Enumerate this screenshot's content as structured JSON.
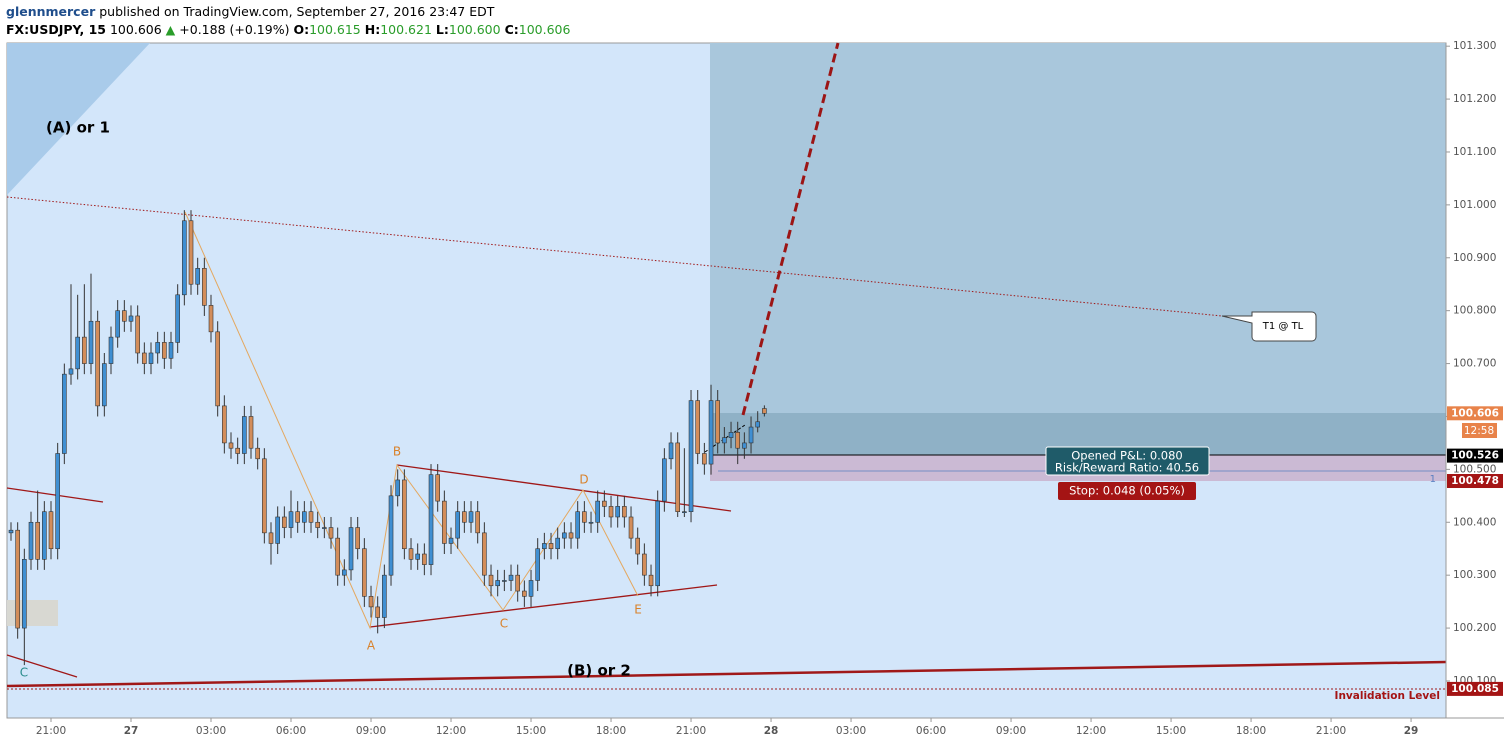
{
  "header": {
    "author": "glennmercer",
    "published": "published on TradingView.com, September 27, 2016 23:47 EDT",
    "symbol": "FX:USDJPY, 15",
    "last": "100.606",
    "change": "+0.188 (+0.19%)",
    "o_label": "O:",
    "o": "100.615",
    "h_label": "H:",
    "h": "100.621",
    "l_label": "L:",
    "l": "100.600",
    "c_label": "C:",
    "c": "100.606"
  },
  "chart_data": {
    "type": "candlestick",
    "x": [
      19.5,
      19.75,
      20,
      20.25,
      20.5,
      20.75,
      21,
      21.25,
      21.5,
      21.75,
      22,
      22.25,
      22.5,
      22.75,
      23,
      23.25,
      23.5,
      23.75,
      24,
      24.25,
      24.5,
      24.75,
      25,
      25.25,
      25.5,
      25.75,
      26,
      26.25,
      26.5,
      26.75,
      27,
      27.25,
      27.5,
      27.75,
      28,
      28.25,
      28.5,
      28.75,
      29,
      29.25,
      29.5,
      29.75,
      30,
      30.25,
      30.5,
      30.75,
      31,
      31.25,
      31.5,
      31.75,
      32,
      32.25,
      32.5,
      32.75,
      33,
      33.25,
      33.5,
      33.75,
      34,
      34.25,
      34.5,
      34.75,
      35,
      35.25,
      35.5,
      35.75,
      36,
      36.25,
      36.5,
      36.75,
      37,
      37.25,
      37.5,
      37.75,
      38,
      38.25,
      38.5,
      38.75,
      39,
      39.25,
      39.5,
      39.75,
      40,
      40.25,
      40.5,
      40.75,
      41,
      41.25,
      41.5,
      41.75,
      42,
      42.25,
      42.5,
      42.75,
      43,
      43.25,
      43.5,
      43.75,
      44,
      44.25,
      44.5,
      44.75,
      45,
      45.25,
      45.5,
      45.75,
      46,
      46.25,
      46.5,
      46.75,
      47,
      47.25,
      47.5,
      47.75
    ],
    "open": [
      100.38,
      100.385,
      100.2,
      100.33,
      100.4,
      100.33,
      100.42,
      100.35,
      100.53,
      100.68,
      100.69,
      100.75,
      100.7,
      100.78,
      100.62,
      100.7,
      100.75,
      100.8,
      100.78,
      100.79,
      100.72,
      100.7,
      100.72,
      100.74,
      100.71,
      100.74,
      100.83,
      100.97,
      100.85,
      100.88,
      100.81,
      100.76,
      100.62,
      100.55,
      100.54,
      100.53,
      100.6,
      100.54,
      100.52,
      100.38,
      100.36,
      100.41,
      100.39,
      100.42,
      100.4,
      100.42,
      100.4,
      100.39,
      100.39,
      100.37,
      100.3,
      100.31,
      100.39,
      100.35,
      100.26,
      100.24,
      100.22,
      100.3,
      100.45,
      100.48,
      100.35,
      100.33,
      100.34,
      100.32,
      100.49,
      100.44,
      100.36,
      100.37,
      100.42,
      100.4,
      100.42,
      100.38,
      100.3,
      100.28,
      100.29,
      100.29,
      100.3,
      100.27,
      100.26,
      100.29,
      100.35,
      100.36,
      100.35,
      100.37,
      100.38,
      100.37,
      100.42,
      100.4,
      100.4,
      100.44,
      100.43,
      100.41,
      100.43,
      100.41,
      100.37,
      100.34,
      100.3,
      100.28,
      100.44,
      100.52,
      100.55,
      100.42,
      100.42,
      100.63,
      100.53,
      100.51,
      100.63,
      100.55,
      100.56,
      100.57,
      100.54,
      100.55,
      100.58,
      100.615
    ],
    "high": [
      100.4,
      100.4,
      100.35,
      100.42,
      100.46,
      100.44,
      100.44,
      100.55,
      100.7,
      100.85,
      100.83,
      100.85,
      100.87,
      100.8,
      100.72,
      100.77,
      100.82,
      100.82,
      100.81,
      100.81,
      100.74,
      100.74,
      100.76,
      100.76,
      100.76,
      100.85,
      100.99,
      100.99,
      100.9,
      100.9,
      100.83,
      100.78,
      100.64,
      100.57,
      100.56,
      100.62,
      100.62,
      100.56,
      100.54,
      100.4,
      100.43,
      100.43,
      100.46,
      100.44,
      100.44,
      100.44,
      100.42,
      100.41,
      100.41,
      100.39,
      100.33,
      100.41,
      100.41,
      100.37,
      100.28,
      100.26,
      100.32,
      100.47,
      100.5,
      100.5,
      100.37,
      100.36,
      100.36,
      100.51,
      100.51,
      100.46,
      100.39,
      100.44,
      100.44,
      100.44,
      100.44,
      100.4,
      100.32,
      100.31,
      100.31,
      100.32,
      100.32,
      100.29,
      100.31,
      100.37,
      100.38,
      100.38,
      100.39,
      100.4,
      100.4,
      100.44,
      100.44,
      100.42,
      100.46,
      100.46,
      100.45,
      100.45,
      100.45,
      100.43,
      100.39,
      100.36,
      100.32,
      100.46,
      100.54,
      100.57,
      100.57,
      100.54,
      100.65,
      100.65,
      100.55,
      100.66,
      100.65,
      100.58,
      100.59,
      100.59,
      100.57,
      100.6,
      100.61,
      100.621
    ],
    "low": [
      100.365,
      100.18,
      100.13,
      100.31,
      100.31,
      100.31,
      100.33,
      100.33,
      100.51,
      100.66,
      100.67,
      100.68,
      100.68,
      100.6,
      100.6,
      100.68,
      100.73,
      100.76,
      100.76,
      100.7,
      100.68,
      100.68,
      100.7,
      100.69,
      100.69,
      100.72,
      100.81,
      100.83,
      100.83,
      100.79,
      100.74,
      100.6,
      100.53,
      100.52,
      100.51,
      100.51,
      100.52,
      100.5,
      100.36,
      100.32,
      100.34,
      100.37,
      100.37,
      100.38,
      100.38,
      100.38,
      100.37,
      100.37,
      100.35,
      100.28,
      100.28,
      100.29,
      100.33,
      100.24,
      100.22,
      100.19,
      100.2,
      100.28,
      100.43,
      100.33,
      100.31,
      100.31,
      100.3,
      100.3,
      100.42,
      100.34,
      100.34,
      100.35,
      100.38,
      100.38,
      100.36,
      100.28,
      100.26,
      100.26,
      100.27,
      100.27,
      100.25,
      100.24,
      100.24,
      100.27,
      100.33,
      100.33,
      100.33,
      100.35,
      100.35,
      100.35,
      100.38,
      100.38,
      100.38,
      100.41,
      100.39,
      100.39,
      100.39,
      100.35,
      100.32,
      100.28,
      100.26,
      100.26,
      100.42,
      100.5,
      100.41,
      100.41,
      100.4,
      100.51,
      100.49,
      100.49,
      100.53,
      100.53,
      100.54,
      100.51,
      100.52,
      100.53,
      100.57,
      100.6
    ],
    "close": [
      100.385,
      100.2,
      100.33,
      100.4,
      100.33,
      100.42,
      100.35,
      100.53,
      100.68,
      100.69,
      100.75,
      100.7,
      100.78,
      100.62,
      100.7,
      100.75,
      100.8,
      100.78,
      100.79,
      100.72,
      100.7,
      100.72,
      100.74,
      100.71,
      100.74,
      100.83,
      100.97,
      100.85,
      100.88,
      100.81,
      100.76,
      100.62,
      100.55,
      100.54,
      100.53,
      100.6,
      100.54,
      100.52,
      100.38,
      100.36,
      100.41,
      100.39,
      100.42,
      100.4,
      100.42,
      100.4,
      100.39,
      100.39,
      100.37,
      100.3,
      100.31,
      100.39,
      100.35,
      100.26,
      100.24,
      100.22,
      100.3,
      100.45,
      100.48,
      100.35,
      100.33,
      100.34,
      100.32,
      100.49,
      100.44,
      100.36,
      100.37,
      100.42,
      100.4,
      100.42,
      100.38,
      100.3,
      100.28,
      100.29,
      100.29,
      100.3,
      100.27,
      100.26,
      100.29,
      100.35,
      100.36,
      100.35,
      100.37,
      100.38,
      100.37,
      100.42,
      100.4,
      100.4,
      100.44,
      100.43,
      100.41,
      100.43,
      100.41,
      100.37,
      100.34,
      100.3,
      100.28,
      100.44,
      100.52,
      100.55,
      100.42,
      100.42,
      100.63,
      100.53,
      100.51,
      100.63,
      100.55,
      100.56,
      100.57,
      100.54,
      100.55,
      100.58,
      100.59,
      100.606
    ],
    "up_color": "#3f8fd2",
    "down_color": "#d38d5a",
    "xlim": [
      19.35,
      73.31
    ],
    "xticks": [
      {
        "value": 21,
        "label": "21:00"
      },
      {
        "value": 24,
        "label": "27"
      },
      {
        "value": 27,
        "label": "03:00"
      },
      {
        "value": 30,
        "label": "06:00"
      },
      {
        "value": 33,
        "label": "09:00"
      },
      {
        "value": 36,
        "label": "12:00"
      },
      {
        "value": 39,
        "label": "15:00"
      },
      {
        "value": 42,
        "label": "18:00"
      },
      {
        "value": 45,
        "label": "21:00"
      },
      {
        "value": 48,
        "label": "28"
      },
      {
        "value": 51,
        "label": "03:00"
      },
      {
        "value": 54,
        "label": "06:00"
      },
      {
        "value": 57,
        "label": "09:00"
      },
      {
        "value": 60,
        "label": "12:00"
      },
      {
        "value": 63,
        "label": "15:00"
      },
      {
        "value": 66,
        "label": "18:00"
      },
      {
        "value": 69,
        "label": "21:00"
      },
      {
        "value": 72,
        "label": "29"
      }
    ],
    "ylim": [
      100.03,
      101.306
    ],
    "yticks": [
      {
        "value": 100.1,
        "label": "100.100"
      },
      {
        "value": 100.2,
        "label": "100.200"
      },
      {
        "value": 100.3,
        "label": "100.300"
      },
      {
        "value": 100.4,
        "label": "100.400"
      },
      {
        "value": 100.5,
        "label": "100.500"
      },
      {
        "value": 100.6,
        "label": "100.600"
      },
      {
        "value": 100.7,
        "label": "100.700"
      },
      {
        "value": 100.8,
        "label": "100.800"
      },
      {
        "value": 100.9,
        "label": "100.900"
      },
      {
        "value": 101,
        "label": "101.000"
      },
      {
        "value": 101.1,
        "label": "101.100"
      },
      {
        "value": 101.2,
        "label": "101.200"
      },
      {
        "value": 101.3,
        "label": "101.300"
      }
    ],
    "price_tags": [
      {
        "value": 100.606,
        "color": "#e8834a"
      },
      {
        "value": 100.526,
        "color": "#000000"
      },
      {
        "value": 100.478,
        "color": "#a41414"
      },
      {
        "value": 100.085,
        "color": "#a41414"
      }
    ],
    "countdown": "12:58",
    "annotations": {
      "wave_a1": "(A) or 1",
      "wave_b2": "(B) or 2",
      "a": "A",
      "b": "B",
      "c": "C",
      "d": "D",
      "e": "E",
      "c_start": "C",
      "target": "T1 @ TL",
      "pnl": "Opened P&L: 0.080",
      "rr": "Risk/Reward Ratio: 40.56",
      "stop": "Stop: 0.048 (0.05%)",
      "invalidation": "Invalidation Level",
      "qty": "1"
    }
  }
}
